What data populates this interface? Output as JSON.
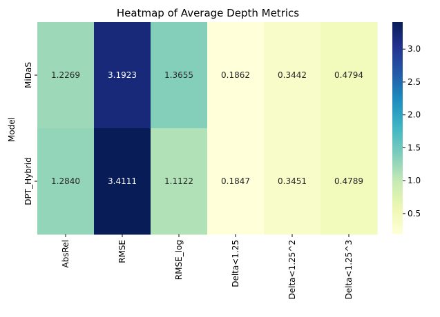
{
  "chart_data": {
    "type": "heatmap",
    "title": "Heatmap of Average Depth Metrics",
    "xlabel": "",
    "ylabel": "Model",
    "columns": [
      "AbsRel",
      "RMSE",
      "RMSE_log",
      "Delta<1.25",
      "Delta<1.25^2",
      "Delta<1.25^3"
    ],
    "rows": [
      "MiDaS",
      "DPT_Hybrid"
    ],
    "values": [
      [
        1.2269,
        3.1923,
        1.3655,
        0.1862,
        0.3442,
        0.4794
      ],
      [
        1.284,
        3.4111,
        1.1122,
        0.1847,
        0.3451,
        0.4789
      ]
    ],
    "value_format": "4 decimals",
    "colormap": "YlGnBu",
    "colorbar": {
      "range": [
        0.1847,
        3.4111
      ],
      "ticks": [
        0.5,
        1.0,
        1.5,
        2.0,
        2.5,
        3.0
      ],
      "tick_labels": [
        "0.5",
        "1.0",
        "1.5",
        "2.0",
        "2.5",
        "3.0"
      ]
    }
  }
}
